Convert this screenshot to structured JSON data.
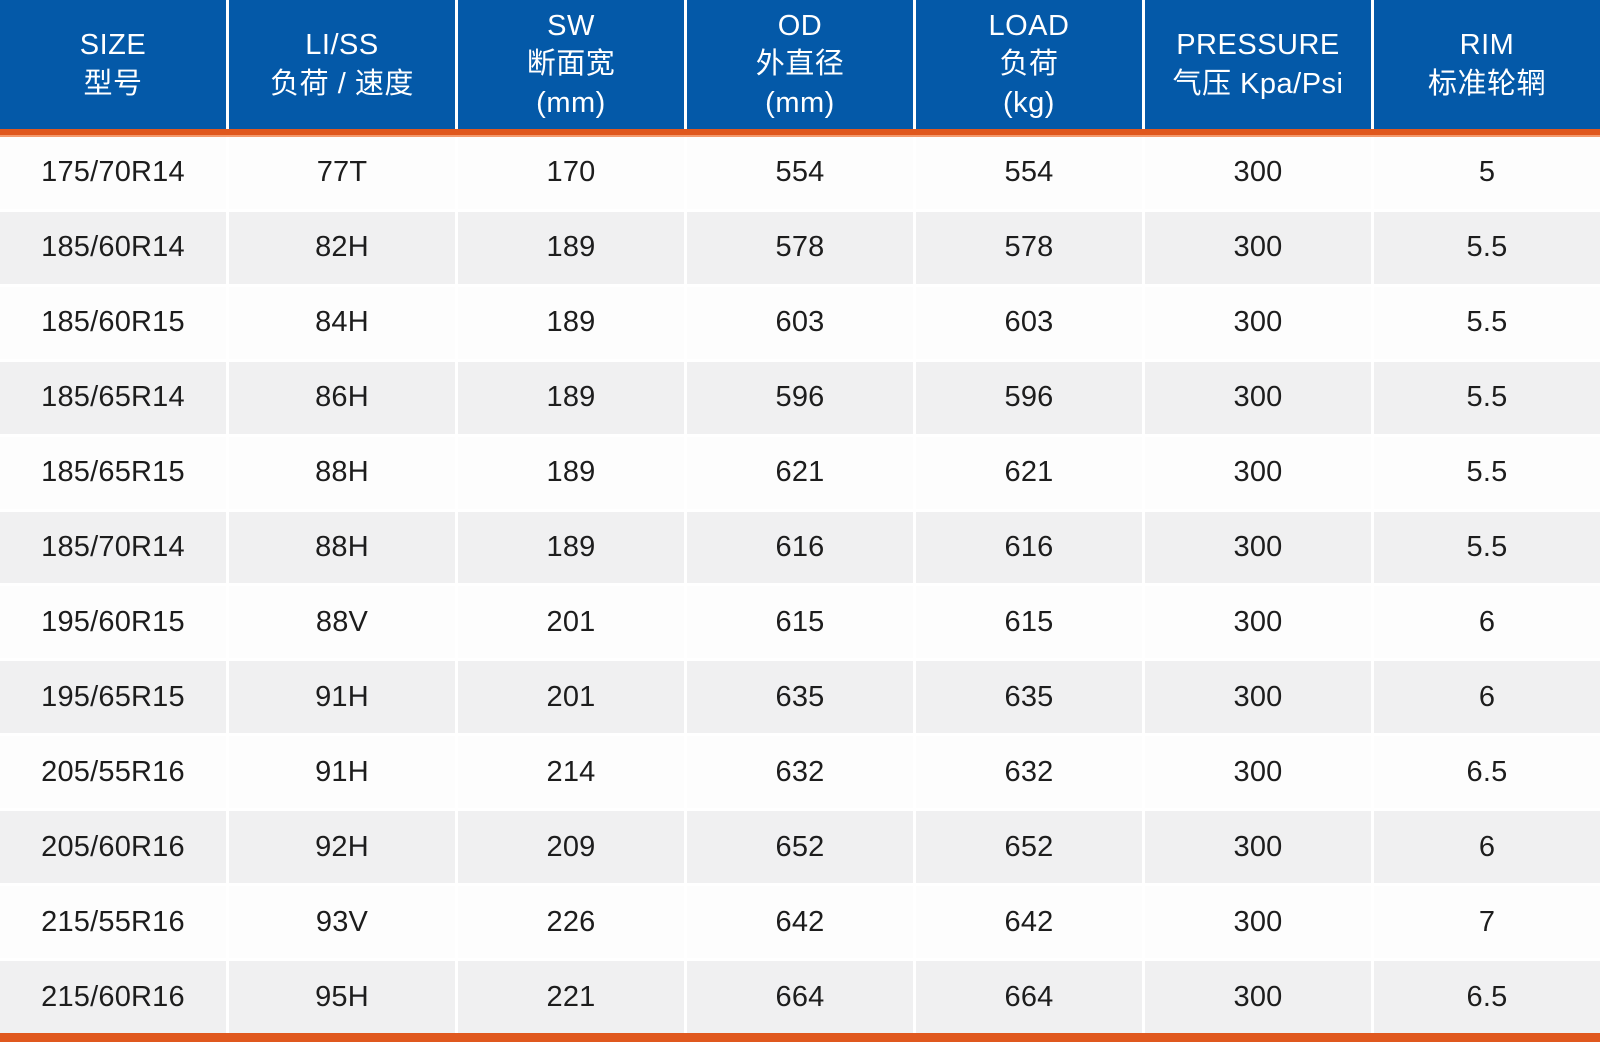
{
  "colors": {
    "header_blue": "#0459a8",
    "accent_orange": "#e0581e",
    "accent_orange_light": "#f39a6d",
    "row_light": "#fdfdfd",
    "row_shaded": "#f0f0f1",
    "separator_white": "#ffffff",
    "body_text": "#1d1d1d"
  },
  "chart_data": {
    "type": "table",
    "title": "Tire specification chart",
    "column_keys": [
      "size",
      "li_ss",
      "sw",
      "od",
      "load",
      "pressure",
      "rim"
    ],
    "columns": [
      {
        "en": "SIZE",
        "zh": "型号",
        "unit": ""
      },
      {
        "en": "LI/SS",
        "zh": "负荷 / 速度",
        "unit": ""
      },
      {
        "en": "SW",
        "zh": "断面宽",
        "unit": "(mm)"
      },
      {
        "en": "OD",
        "zh": "外直径",
        "unit": "(mm)"
      },
      {
        "en": "LOAD",
        "zh": "负荷",
        "unit": "(kg)"
      },
      {
        "en": "PRESSURE",
        "zh": "气压 Kpa/Psi",
        "unit": ""
      },
      {
        "en": "RIM",
        "zh": "标准轮辋",
        "unit": ""
      }
    ],
    "rows": [
      [
        "175/70R14",
        "77T",
        "170",
        "554",
        "554",
        "300",
        "5"
      ],
      [
        "185/60R14",
        "82H",
        "189",
        "578",
        "578",
        "300",
        "5.5"
      ],
      [
        "185/60R15",
        "84H",
        "189",
        "603",
        "603",
        "300",
        "5.5"
      ],
      [
        "185/65R14",
        "86H",
        "189",
        "596",
        "596",
        "300",
        "5.5"
      ],
      [
        "185/65R15",
        "88H",
        "189",
        "621",
        "621",
        "300",
        "5.5"
      ],
      [
        "185/70R14",
        "88H",
        "189",
        "616",
        "616",
        "300",
        "5.5"
      ],
      [
        "195/60R15",
        "88V",
        "201",
        "615",
        "615",
        "300",
        "6"
      ],
      [
        "195/65R15",
        "91H",
        "201",
        "635",
        "635",
        "300",
        "6"
      ],
      [
        "205/55R16",
        "91H",
        "214",
        "632",
        "632",
        "300",
        "6.5"
      ],
      [
        "205/60R16",
        "92H",
        "209",
        "652",
        "652",
        "300",
        "6"
      ],
      [
        "215/55R16",
        "93V",
        "226",
        "642",
        "642",
        "300",
        "7"
      ],
      [
        "215/60R16",
        "95H",
        "221",
        "664",
        "664",
        "300",
        "6.5"
      ]
    ]
  }
}
